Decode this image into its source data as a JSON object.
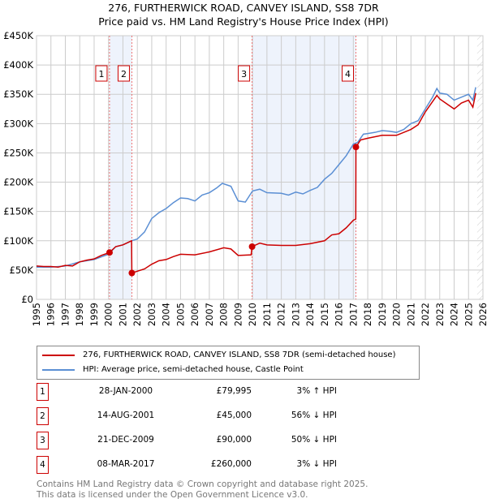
{
  "chart_data": {
    "type": "line",
    "title": "276, FURTHERWICK ROAD, CANVEY ISLAND, SS8 7DR",
    "subtitle": "Price paid vs. HM Land Registry's House Price Index (HPI)",
    "xlim": [
      1995,
      2026
    ],
    "ylim": [
      0,
      450000
    ],
    "yticks": [
      {
        "v": 0,
        "label": "£0"
      },
      {
        "v": 50000,
        "label": "£50K"
      },
      {
        "v": 100000,
        "label": "£100K"
      },
      {
        "v": 150000,
        "label": "£150K"
      },
      {
        "v": 200000,
        "label": "£200K"
      },
      {
        "v": 250000,
        "label": "£250K"
      },
      {
        "v": 300000,
        "label": "£300K"
      },
      {
        "v": 350000,
        "label": "£350K"
      },
      {
        "v": 400000,
        "label": "£400K"
      },
      {
        "v": 450000,
        "label": "£450K"
      }
    ],
    "xticks": [
      "1995",
      "1996",
      "1997",
      "1998",
      "1999",
      "2000",
      "2001",
      "2002",
      "2003",
      "2004",
      "2005",
      "2006",
      "2007",
      "2008",
      "2009",
      "2010",
      "2011",
      "2012",
      "2013",
      "2014",
      "2015",
      "2016",
      "2017",
      "2018",
      "2019",
      "2020",
      "2021",
      "2022",
      "2023",
      "2024",
      "2025",
      "2026"
    ],
    "grid": true,
    "shaded": [
      [
        2000.07,
        2001.62
      ],
      [
        2009.97,
        2017.18
      ]
    ],
    "hatch_from": 2025.6,
    "sales": [
      {
        "n": "1",
        "x": 2000.07,
        "y": 79995
      },
      {
        "n": "2",
        "x": 2001.62,
        "y": 45000
      },
      {
        "n": "3",
        "x": 2009.97,
        "y": 90000
      },
      {
        "n": "4",
        "x": 2017.18,
        "y": 260000
      }
    ],
    "series": [
      {
        "name": "276, FURTHERWICK ROAD, CANVEY ISLAND, SS8 7DR (semi-detached house)",
        "color": "#cc0000",
        "x": [
          1995,
          1995.5,
          1996,
          1996.5,
          1997,
          1997.5,
          1998,
          1998.5,
          1999,
          1999.5,
          2000.07,
          2000.5,
          2001,
          2001.6,
          2001.62,
          2002.5,
          2003,
          2003.5,
          2004,
          2004.5,
          2005,
          2006,
          2007,
          2008,
          2008.5,
          2009,
          2009.9,
          2009.97,
          2010.5,
          2011,
          2012,
          2013,
          2014,
          2015,
          2015.5,
          2016,
          2016.5,
          2017,
          2017.17,
          2017.18,
          2017.5,
          2018,
          2019,
          2020,
          2021,
          2021.5,
          2022,
          2022.8,
          2023,
          2024,
          2024.5,
          2025,
          2025.3,
          2025.5
        ],
        "y": [
          57000,
          56000,
          56000,
          55000,
          58000,
          57000,
          64000,
          67000,
          69000,
          75000,
          79995,
          90000,
          93000,
          100000,
          45000,
          52000,
          60000,
          66000,
          68000,
          73000,
          77000,
          76000,
          81000,
          88000,
          86000,
          75000,
          76000,
          90000,
          96000,
          93000,
          92000,
          92000,
          95000,
          100000,
          110000,
          112000,
          122000,
          135000,
          137000,
          260000,
          272000,
          275000,
          280000,
          280000,
          290000,
          298000,
          320000,
          348000,
          342000,
          325000,
          335000,
          340000,
          328000,
          352000
        ]
      },
      {
        "name": "HPI: Average price, semi-detached house, Castle Point",
        "color": "#5b8fd4",
        "x": [
          1995,
          1996,
          1997,
          1998,
          1999,
          2000,
          2000.5,
          2001,
          2001.6,
          2002,
          2002.5,
          2003,
          2003.5,
          2004,
          2004.5,
          2005,
          2005.5,
          2006,
          2006.5,
          2007,
          2007.5,
          2007.9,
          2008.5,
          2009,
          2009.5,
          2010,
          2010.5,
          2011,
          2012,
          2012.5,
          2013,
          2013.5,
          2014,
          2014.5,
          2015,
          2015.5,
          2016,
          2016.5,
          2017,
          2017.3,
          2017.7,
          2018,
          2018.5,
          2019,
          2019.5,
          2020,
          2020.5,
          2021,
          2021.5,
          2022,
          2022.5,
          2022.8,
          2023,
          2023.5,
          2024,
          2024.5,
          2025,
          2025.3,
          2025.5
        ],
        "y": [
          55000,
          55000,
          57000,
          64000,
          68000,
          77000,
          90000,
          93000,
          100000,
          103000,
          115000,
          138000,
          148000,
          155000,
          165000,
          173000,
          172000,
          168000,
          178000,
          182000,
          190000,
          198000,
          193000,
          168000,
          166000,
          185000,
          188000,
          182000,
          181000,
          178000,
          183000,
          180000,
          186000,
          191000,
          205000,
          215000,
          230000,
          245000,
          265000,
          268000,
          282000,
          283000,
          285000,
          288000,
          287000,
          285000,
          290000,
          300000,
          305000,
          325000,
          345000,
          360000,
          352000,
          350000,
          340000,
          345000,
          350000,
          340000,
          362000
        ]
      }
    ]
  },
  "legend": {
    "items": [
      "276, FURTHERWICK ROAD, CANVEY ISLAND, SS8 7DR (semi-detached house)",
      "HPI: Average price, semi-detached house, Castle Point"
    ]
  },
  "transactions": [
    {
      "n": "1",
      "date": "28-JAN-2000",
      "price": "£79,995",
      "hpi": "3% ↑ HPI"
    },
    {
      "n": "2",
      "date": "14-AUG-2001",
      "price": "£45,000",
      "hpi": "56% ↓ HPI"
    },
    {
      "n": "3",
      "date": "21-DEC-2009",
      "price": "£90,000",
      "hpi": "50% ↓ HPI"
    },
    {
      "n": "4",
      "date": "08-MAR-2017",
      "price": "£260,000",
      "hpi": "3% ↓ HPI"
    }
  ],
  "footer": {
    "line1": "Contains HM Land Registry data © Crown copyright and database right 2025.",
    "line2": "This data is licensed under the Open Government Licence v3.0."
  }
}
